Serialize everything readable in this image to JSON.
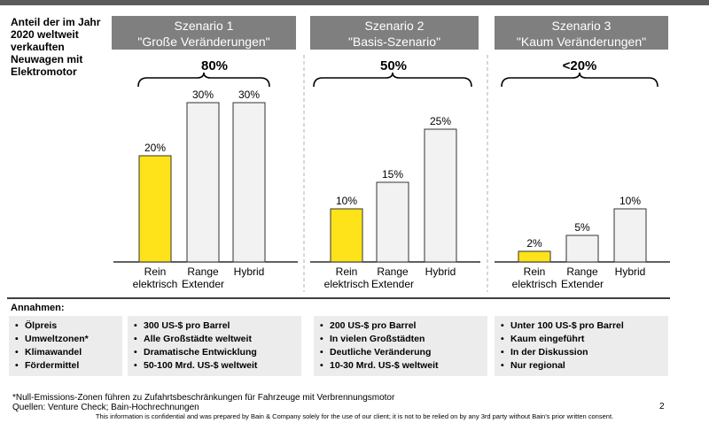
{
  "y_axis_label": "Anteil der im Jahr 2020 weltweit verkauften Neuwagen mit Elektromotor",
  "colors": {
    "highlight": "#ffe31a",
    "bar": "#f2f2f2",
    "bar_stroke": "#333333",
    "header": "#7f7f7f",
    "assumption_bg": "#ececec"
  },
  "chart_data": {
    "type": "bar",
    "title": "",
    "ylabel": "Anteil der im Jahr 2020 weltweit verkauften Neuwagen mit Elektromotor",
    "ylim": [
      0,
      30
    ],
    "grid": false,
    "panels": [
      {
        "name": "Szenario 1",
        "subtitle": "\"Große Veränderungen\"",
        "total_label": "80%",
        "categories": [
          "Rein\nelektrisch",
          "Range\nExtender",
          "Hybrid"
        ],
        "values": [
          20,
          30,
          30
        ],
        "value_labels": [
          "20%",
          "30%",
          "30%"
        ]
      },
      {
        "name": "Szenario 2",
        "subtitle": "\"Basis-Szenario\"",
        "total_label": "50%",
        "categories": [
          "Rein\nelektrisch",
          "Range\nExtender",
          "Hybrid"
        ],
        "values": [
          10,
          15,
          25
        ],
        "value_labels": [
          "10%",
          "15%",
          "25%"
        ]
      },
      {
        "name": "Szenario 3",
        "subtitle": "\"Kaum Veränderungen\"",
        "total_label": "<20%",
        "categories": [
          "Rein\nelektrisch",
          "Range\nExtender",
          "Hybrid"
        ],
        "values": [
          2,
          5,
          10
        ],
        "value_labels": [
          "2%",
          "5%",
          "10%"
        ]
      }
    ]
  },
  "assumptions": {
    "title": "Annahmen:",
    "factors": [
      "Ölpreis",
      "Umweltzonen*",
      "Klimawandel",
      "Fördermittel"
    ],
    "scenario1": [
      "300 US-$ pro Barrel",
      "Alle Großstädte weltweit",
      "Dramatische Entwicklung",
      "50-100 Mrd. US-$ weltweit"
    ],
    "scenario2": [
      "200 US-$ pro Barrel",
      "In vielen Großstädten",
      "Deutliche Veränderung",
      "10-30 Mrd. US-$ weltweit"
    ],
    "scenario3": [
      "Unter 100 US-$ pro Barrel",
      "Kaum eingeführt",
      "In der Diskussion",
      "Nur regional"
    ]
  },
  "footer": {
    "footnote": "*Null-Emissions-Zonen führen zu Zufahrtsbeschränkungen für Fahrzeuge mit Verbrennungsmotor",
    "sources": "Quellen: Venture Check; Bain-Hochrechnungen",
    "disclaimer": "This information is confidential and was prepared by Bain & Company solely for the use of our client; it is not to be relied on by any 3rd party without Bain's prior written consent.",
    "page_number": "2"
  }
}
